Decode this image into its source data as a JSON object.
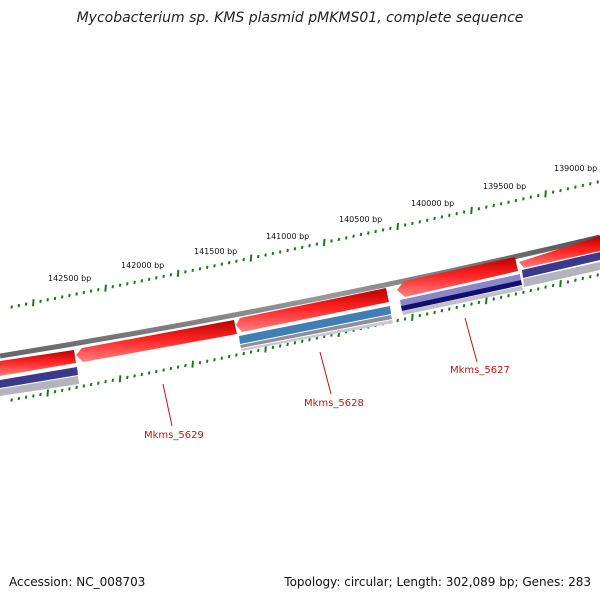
{
  "title": "Mycobacterium sp. KMS plasmid pMKMS01, complete sequence",
  "footer": {
    "accession": "Accession: NC_008703",
    "summary": "Topology: circular; Length: 302,089 bp; Genes: 283"
  },
  "ruler": {
    "tick_labels": [
      {
        "bp": 139000,
        "label": "139000 bp"
      },
      {
        "bp": 139500,
        "label": "139500 bp"
      },
      {
        "bp": 140000,
        "label": "140000 bp"
      },
      {
        "bp": 140500,
        "label": "140500 bp"
      },
      {
        "bp": 141000,
        "label": "141000 bp"
      },
      {
        "bp": 141500,
        "label": "141500 bp"
      },
      {
        "bp": 142000,
        "label": "142000 bp"
      },
      {
        "bp": 142500,
        "label": "142500 bp"
      }
    ]
  },
  "genes": [
    {
      "name": "Mkms_5627",
      "label": "Mkms_5627"
    },
    {
      "name": "Mkms_5628",
      "label": "Mkms_5628"
    },
    {
      "name": "Mkms_5629",
      "label": "Mkms_5629"
    }
  ],
  "colors": {
    "backbone": "#7a7a7a",
    "cds": "#ee1111",
    "gene_label": "#cc1111",
    "ruler": "#1a7a1a",
    "track_navy": "#2a2a88",
    "track_blue": "#3a7ab8",
    "track_gray": "#b0b0b8"
  }
}
